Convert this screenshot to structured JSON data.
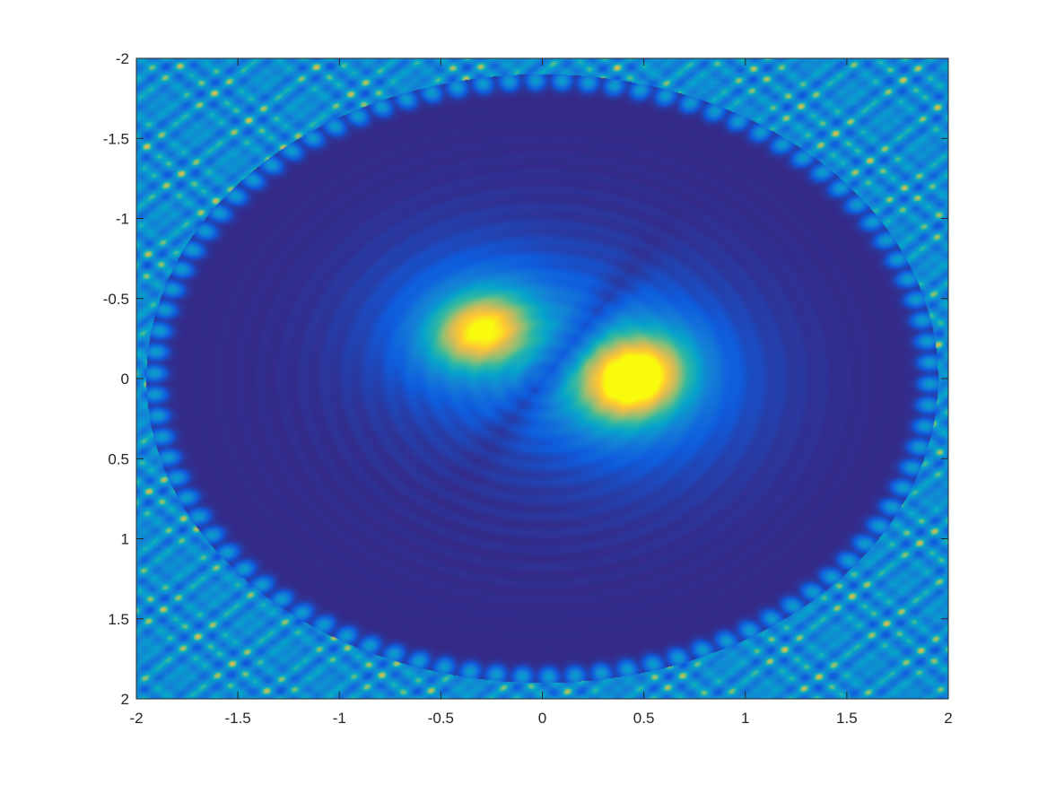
{
  "chart_data": {
    "type": "heatmap",
    "title": "",
    "xlabel": "",
    "ylabel": "",
    "xlim": [
      -2,
      2
    ],
    "ylim": [
      -2,
      2
    ],
    "y_direction": "reverse",
    "colormap": "parula",
    "colormap_stops": [
      "#352a87",
      "#0f5cdd",
      "#1481d6",
      "#06a4ca",
      "#2eb7a4",
      "#87bf77",
      "#d1bb59",
      "#fec832",
      "#f9fb0e"
    ],
    "x_ticks": [
      -2,
      -1.5,
      -1,
      -0.5,
      0,
      0.5,
      1,
      1.5,
      2
    ],
    "x_tick_labels": [
      "-2",
      "-1.5",
      "-1",
      "-0.5",
      "0",
      "0.5",
      "1",
      "1.5",
      "2"
    ],
    "y_ticks": [
      -2,
      -1.5,
      -1,
      -0.5,
      0,
      0.5,
      1,
      1.5,
      2
    ],
    "y_tick_labels": [
      "-2",
      "-1.5",
      "-1",
      "-0.5",
      "0",
      "0.5",
      "1",
      "1.5",
      "2"
    ],
    "features": [
      {
        "kind": "peak",
        "x": -0.3,
        "y": -0.3,
        "level": 0.78
      },
      {
        "kind": "peak",
        "x": 0.45,
        "y": 0.0,
        "level": 1.0
      },
      {
        "kind": "ring",
        "shape": "ellipse",
        "rx": 1.95,
        "ry": 1.9,
        "level": 0.35
      }
    ],
    "grid": false,
    "legend": "none"
  }
}
